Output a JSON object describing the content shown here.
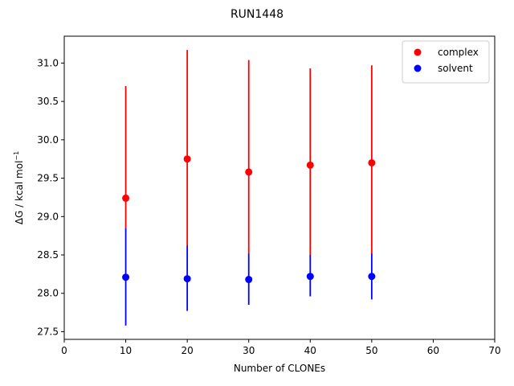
{
  "chart_data": {
    "type": "scatter",
    "title": "RUN1448",
    "xlabel": "Number of CLONEs",
    "ylabel_main": "ΔG / kcal mol",
    "ylabel_sup": "−1",
    "xlim": [
      0,
      70
    ],
    "ylim": [
      27.4,
      31.35
    ],
    "xticks": [
      0,
      10,
      20,
      30,
      40,
      50,
      60,
      70
    ],
    "yticks": [
      27.5,
      28.0,
      28.5,
      29.0,
      29.5,
      30.0,
      30.5,
      31.0
    ],
    "ytick_labels": [
      "27.5",
      "28.0",
      "28.5",
      "29.0",
      "29.5",
      "30.0",
      "30.5",
      "31.0"
    ],
    "grid": false,
    "legend_position": "top-right",
    "series": [
      {
        "name": "complex",
        "color": "#ff0000",
        "x": [
          10,
          20,
          30,
          40,
          50
        ],
        "y": [
          29.24,
          29.75,
          29.58,
          29.67,
          29.7
        ],
        "yerr_low": [
          28.85,
          28.62,
          28.52,
          28.5,
          28.52
        ],
        "yerr_high": [
          30.7,
          31.17,
          31.04,
          30.93,
          30.97
        ]
      },
      {
        "name": "solvent",
        "color": "#0000ff",
        "x": [
          10,
          20,
          30,
          40,
          50
        ],
        "y": [
          28.21,
          28.19,
          28.18,
          28.22,
          28.22
        ],
        "yerr_low": [
          27.58,
          27.77,
          27.85,
          27.96,
          27.92
        ],
        "yerr_high": [
          28.85,
          28.62,
          28.52,
          28.5,
          28.52
        ]
      }
    ]
  }
}
